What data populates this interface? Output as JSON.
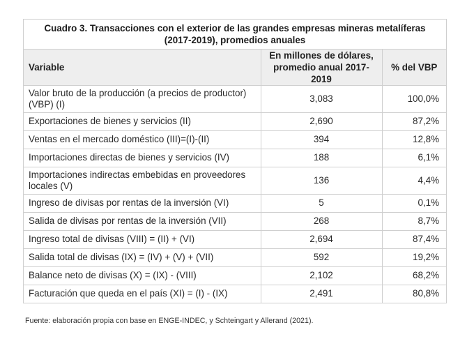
{
  "table": {
    "title": "Cuadro 3. Transacciones con el exterior de las grandes empresas mineras metalíferas (2017-2019), promedios anuales",
    "headers": {
      "variable": "Variable",
      "millions": "En millones de dólares, promedio anual 2017-2019",
      "pct": "% del VBP"
    },
    "rows": [
      {
        "variable": "Valor bruto de la producción (a precios de productor) (VBP) (I)",
        "value": "3,083",
        "pct": "100,0%"
      },
      {
        "variable": "Exportaciones de bienes y servicios (II)",
        "value": "2,690",
        "pct": "87,2%"
      },
      {
        "variable": "Ventas en el mercado doméstico (III)=(I)-(II)",
        "value": "394",
        "pct": "12,8%"
      },
      {
        "variable": "Importaciones directas de bienes y servicios (IV)",
        "value": "188",
        "pct": "6,1%"
      },
      {
        "variable": "Importaciones indirectas embebidas en proveedores locales (V)",
        "value": "136",
        "pct": "4,4%"
      },
      {
        "variable": "Ingreso de divisas por rentas de la inversión (VI)",
        "value": "5",
        "pct": "0,1%"
      },
      {
        "variable": "Salida de divisas por rentas de la inversión (VII)",
        "value": "268",
        "pct": "8,7%"
      },
      {
        "variable": "Ingreso total de divisas (VIII) = (II) + (VI)",
        "value": "2,694",
        "pct": "87,4%"
      },
      {
        "variable": "Salida total de divisas (IX) = (IV) + (V) + (VII)",
        "value": "592",
        "pct": "19,2%"
      },
      {
        "variable": "Balance neto de divisas (X) = (IX) - (VIII)",
        "value": "2,102",
        "pct": "68,2%"
      },
      {
        "variable": "Facturación que queda en el país (XI) = (I) - (IX)",
        "value": "2,491",
        "pct": "80,8%"
      }
    ],
    "source": "Fuente: elaboración propia con base en ENGE-INDEC, y Schteingart y Allerand (2021)."
  }
}
